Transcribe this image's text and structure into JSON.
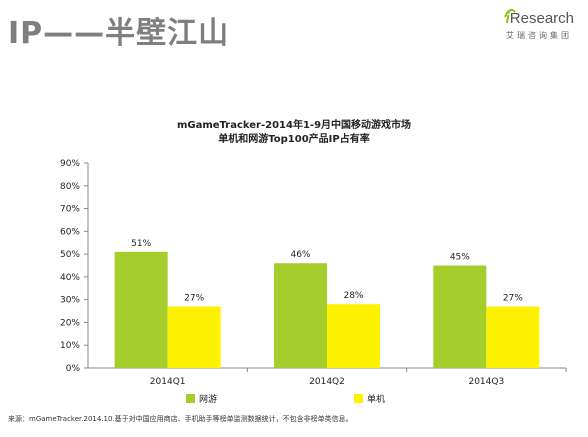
{
  "header": {
    "title": "IP——半壁江山",
    "logo_i": "i",
    "logo_text": "Research",
    "logo_sub": "艾瑞咨询集团"
  },
  "chart_data": {
    "type": "bar",
    "title_line1": "mGameTracker-2014年1-9月中国移动游戏市场",
    "title_line2": "单机和网游Top100产品IP占有率",
    "categories": [
      "2014Q1",
      "2014Q2",
      "2014Q3"
    ],
    "series": [
      {
        "name": "网游",
        "values": [
          51,
          46,
          45
        ],
        "labels": [
          "51%",
          "46%",
          "45%"
        ],
        "color": "#a5cd2c"
      },
      {
        "name": "单机",
        "values": [
          27,
          28,
          27
        ],
        "labels": [
          "27%",
          "28%",
          "27%"
        ],
        "color": "#fff200"
      }
    ],
    "yticks": [
      "0%",
      "10%",
      "20%",
      "30%",
      "40%",
      "50%",
      "60%",
      "70%",
      "80%",
      "90%"
    ],
    "ylim": [
      0,
      90
    ],
    "legend_position": "bottom",
    "grid": false
  },
  "footer": {
    "source": "来源：mGameTracker.2014.10.基于对中国应用商店、手机助手等榜单监测数据统计，不包含非榜单类信息。"
  }
}
